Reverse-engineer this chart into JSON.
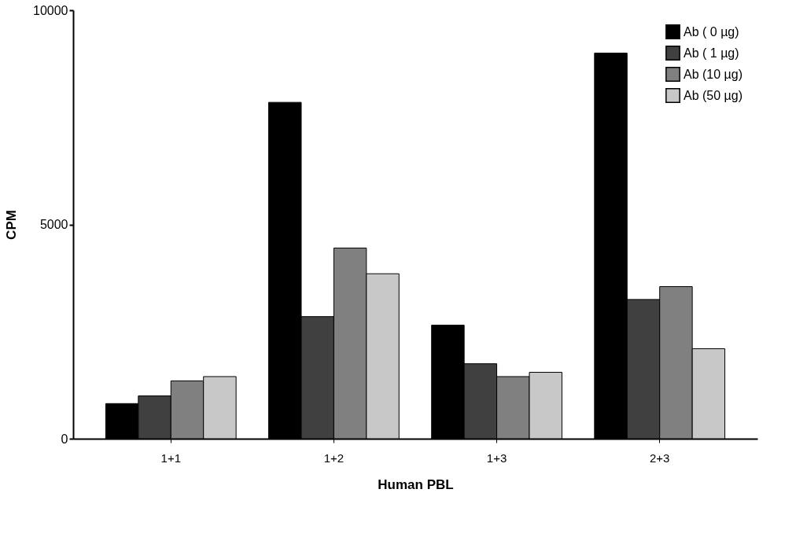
{
  "chart_data": {
    "type": "bar",
    "xlabel": "Human  PBL",
    "ylabel": "CPM",
    "categories": [
      "1+1",
      "1+2",
      "1+3",
      "2+3"
    ],
    "series": [
      {
        "name": "Ab ( 0 µg)",
        "color": "#000000",
        "values": [
          820,
          7850,
          2650,
          9000
        ]
      },
      {
        "name": "Ab ( 1 µg)",
        "color": "#404040",
        "values": [
          1000,
          2850,
          1750,
          3250
        ]
      },
      {
        "name": "Ab (10 µg)",
        "color": "#808080",
        "values": [
          1350,
          4450,
          1450,
          3550
        ]
      },
      {
        "name": "Ab (50 µg)",
        "color": "#c8c8c8",
        "values": [
          1450,
          3850,
          1550,
          2100
        ]
      }
    ],
    "ylim": [
      0,
      10000
    ],
    "yticks": [
      0,
      5000,
      10000
    ],
    "grid": false,
    "legend": "top right"
  }
}
